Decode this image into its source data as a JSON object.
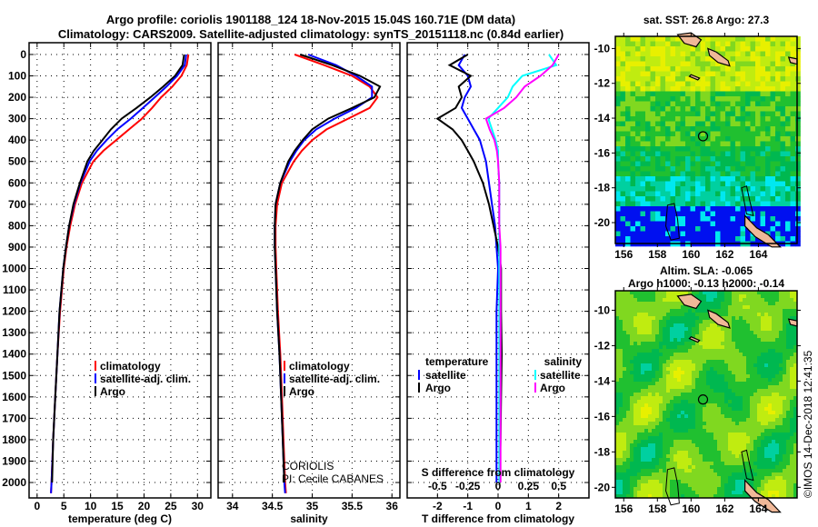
{
  "title_line1": "Argo profile: coriolis 1901188_124 18-Nov-2015 15.04S 160.71E (DM data)",
  "title_line2": "Climatology: CARS2009. Satellite-adjusted climatology: synTS_20151118.nc (0.84d earlier)",
  "credit": "©IMOS 14-Dec-2018 12:41:35",
  "colors": {
    "climatology": "#ff0000",
    "satellite": "#0000ff",
    "argo": "#000000",
    "sal_satellite": "#00ffff",
    "sal_argo": "#ff00ff"
  },
  "depth_ticks": [
    0,
    100,
    200,
    300,
    400,
    500,
    600,
    700,
    800,
    900,
    1000,
    1100,
    1200,
    1300,
    1400,
    1500,
    1600,
    1700,
    1800,
    1900,
    2000
  ],
  "chart_data": [
    {
      "type": "line",
      "xlabel": "temperature (deg C)",
      "ylabel": "depth",
      "xlim": [
        -1.5,
        32.5
      ],
      "ylim": [
        2072,
        -55
      ],
      "xticks": [
        0,
        5,
        10,
        15,
        20,
        25,
        30
      ],
      "xtick_labels": [
        "0",
        "5",
        "10",
        "15",
        "20",
        "25",
        "30"
      ],
      "grid": true,
      "legend": [
        "climatology",
        "satellite-adj. clim.",
        "Argo"
      ],
      "depth": [
        0,
        50,
        100,
        150,
        200,
        250,
        300,
        350,
        400,
        450,
        500,
        600,
        700,
        800,
        900,
        1000,
        1200,
        1400,
        1600,
        1800,
        2000,
        2050
      ],
      "series": [
        {
          "name": "climatology",
          "color": "#ff0000",
          "values": [
            28.3,
            28.0,
            27.0,
            25.3,
            23.2,
            21.5,
            19.6,
            17.2,
            14.8,
            12.4,
            10.5,
            8.4,
            7.1,
            6.2,
            5.5,
            5.0,
            4.3,
            3.8,
            3.4,
            3.0,
            2.7,
            2.6
          ]
        },
        {
          "name": "satellite-adj. clim.",
          "color": "#0000ff",
          "values": [
            27.9,
            27.6,
            26.2,
            24.2,
            22.0,
            19.8,
            17.5,
            15.0,
            13.0,
            11.2,
            9.8,
            8.1,
            6.9,
            6.0,
            5.4,
            4.9,
            4.2,
            3.8,
            3.4,
            3.0,
            2.7,
            2.6
          ]
        },
        {
          "name": "Argo",
          "color": "#000000",
          "values": [
            27.5,
            27.2,
            25.8,
            23.6,
            21.2,
            18.6,
            15.8,
            13.8,
            12.2,
            10.6,
            9.4,
            8.0,
            6.8,
            6.0,
            5.4,
            4.9,
            4.2,
            3.8,
            3.4,
            3.0,
            2.8
          ]
        }
      ]
    },
    {
      "type": "line",
      "xlabel": "salinity",
      "xlim": [
        33.82,
        36.1
      ],
      "ylim": [
        2072,
        -55
      ],
      "xticks": [
        34,
        34.5,
        35,
        35.5,
        36
      ],
      "xtick_labels": [
        "34",
        "34.5",
        "35",
        "35.5",
        "36"
      ],
      "grid": true,
      "legend": [
        "climatology",
        "satellite-adj. clim.",
        "Argo"
      ],
      "annotations": [
        "CORIOLIS",
        "PI: Cecile CABANES"
      ],
      "depth": [
        0,
        50,
        100,
        150,
        200,
        250,
        300,
        350,
        400,
        450,
        500,
        600,
        700,
        800,
        900,
        1000,
        1200,
        1400,
        1600,
        1800,
        2000,
        2050
      ],
      "series": [
        {
          "name": "climatology",
          "color": "#ff0000",
          "values": [
            34.78,
            35.15,
            35.5,
            35.72,
            35.82,
            35.72,
            35.45,
            35.18,
            35.0,
            34.87,
            34.77,
            34.62,
            34.56,
            34.54,
            34.54,
            34.55,
            34.57,
            34.6,
            34.62,
            34.64,
            34.66,
            34.67
          ]
        },
        {
          "name": "satellite-adj. clim.",
          "color": "#0000ff",
          "values": [
            34.95,
            35.3,
            35.55,
            35.75,
            35.75,
            35.55,
            35.28,
            35.05,
            34.9,
            34.8,
            34.72,
            34.6,
            34.54,
            34.53,
            34.53,
            34.54,
            34.56,
            34.59,
            34.61,
            34.63,
            34.65,
            34.66
          ]
        },
        {
          "name": "Argo",
          "color": "#000000",
          "values": [
            34.85,
            35.25,
            35.6,
            35.85,
            35.78,
            35.5,
            35.2,
            35.0,
            34.88,
            34.78,
            34.7,
            34.6,
            34.54,
            34.53,
            34.53,
            34.54,
            34.56,
            34.59,
            34.61,
            34.63,
            34.65
          ]
        }
      ]
    },
    {
      "type": "line",
      "xlabel": "T difference from climatology",
      "xlabel2": "S difference from climatology",
      "xlim": [
        -3,
        3
      ],
      "x2lim": [
        -0.75,
        0.75
      ],
      "ylim": [
        2072,
        -55
      ],
      "xticks": [
        -2,
        -1,
        0,
        1,
        2
      ],
      "xtick_labels": [
        "-2",
        "-1",
        "0",
        "1",
        "2"
      ],
      "x2ticks": [
        -0.5,
        -0.25,
        0,
        0.25,
        0.5
      ],
      "x2tick_labels": [
        "-0.5",
        "-0.25",
        "0",
        "0.25",
        "0.5"
      ],
      "grid": true,
      "legend_temperature": {
        "title": "temperature",
        "items": [
          "satellite",
          "Argo"
        ]
      },
      "legend_salinity": {
        "title": "salinity",
        "items": [
          "satellite",
          "Argo"
        ]
      },
      "depth": [
        0,
        50,
        100,
        150,
        200,
        250,
        300,
        350,
        400,
        450,
        500,
        600,
        700,
        800,
        900,
        1000,
        1200,
        1400,
        1600,
        1800,
        2000
      ],
      "series": [
        {
          "name": "T satellite",
          "axis": "T",
          "color": "#0000ff",
          "values": [
            -1.1,
            -1.3,
            -1.0,
            -0.9,
            -1.1,
            -1.2,
            -1.0,
            -0.8,
            -0.6,
            -0.5,
            -0.4,
            -0.3,
            -0.2,
            -0.1,
            -0.05,
            0.0,
            -0.05,
            -0.05,
            -0.05,
            -0.05,
            -0.05
          ]
        },
        {
          "name": "T Argo",
          "axis": "T",
          "color": "#000000",
          "values": [
            -1.0,
            -1.6,
            -0.9,
            -1.3,
            -1.2,
            -1.4,
            -2.0,
            -1.5,
            -1.2,
            -1.0,
            -0.8,
            -0.5,
            -0.3,
            -0.15,
            0.0,
            0.1,
            0.1,
            0.12,
            0.1,
            0.08,
            0.05
          ]
        },
        {
          "name": "S satellite",
          "axis": "S",
          "color": "#00ffff",
          "values": [
            0.42,
            0.48,
            0.2,
            0.12,
            0.08,
            0.0,
            -0.08,
            -0.05,
            -0.02,
            0.0,
            0.0,
            0.01,
            0.01,
            0.01,
            0.01,
            0.01,
            0.01,
            0.01,
            0.01,
            0.01,
            0.01
          ]
        },
        {
          "name": "S Argo",
          "axis": "S",
          "color": "#ff00ff",
          "values": [
            0.5,
            0.45,
            0.35,
            0.22,
            0.15,
            0.05,
            -0.1,
            -0.07,
            -0.03,
            -0.01,
            0.0,
            0.01,
            0.01,
            0.01,
            0.02,
            0.02,
            0.02,
            0.02,
            0.02,
            0.02,
            0.02
          ]
        }
      ]
    },
    {
      "type": "heatmap",
      "title": "sat. SST: 26.8 Argo: 27.3",
      "xlim": [
        155.5,
        166.3
      ],
      "ylim": [
        -21.2,
        -9.3
      ],
      "xticks": [
        156,
        158,
        160,
        162,
        164
      ],
      "yticks": [
        -10,
        -12,
        -14,
        -16,
        -18,
        -20
      ],
      "float_position": [
        160.71,
        -15.04
      ]
    },
    {
      "type": "heatmap",
      "title": "Altim. SLA: -0.065",
      "subtitle": "Argo h1000: -0.13 h2000: -0.14",
      "xlim": [
        155.5,
        166.3
      ],
      "ylim": [
        -20.6,
        -8.9
      ],
      "xticks": [
        156,
        158,
        160,
        162,
        164
      ],
      "yticks": [
        -10,
        -12,
        -14,
        -16,
        -18,
        -20
      ],
      "float_position": [
        160.71,
        -15.04
      ]
    }
  ]
}
